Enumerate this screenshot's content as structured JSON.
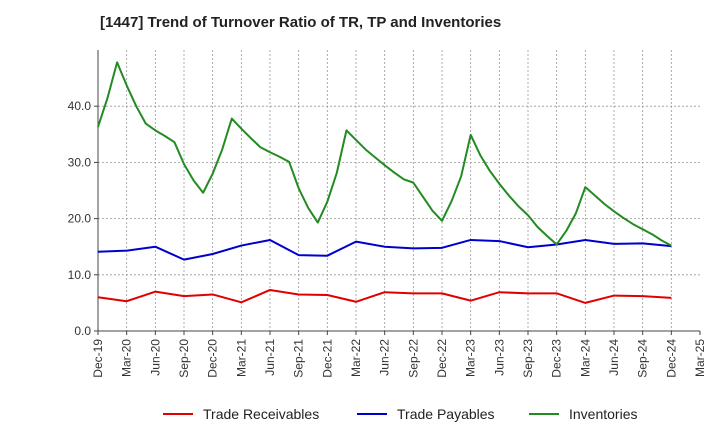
{
  "title": "[1447]  Trend of Turnover Ratio of TR, TP and Inventories",
  "chart_data": {
    "type": "line",
    "ylim": [
      0,
      50
    ],
    "yticks": [
      0,
      10,
      20,
      30,
      40
    ],
    "ytick_labels": [
      "0.0",
      "10.0",
      "20.0",
      "30.0",
      "40.0"
    ],
    "grid": true,
    "legend": "bottom",
    "x_tick_labels": [
      "Dec-19",
      "Mar-20",
      "Jun-20",
      "Sep-20",
      "Dec-20",
      "Mar-21",
      "Jun-21",
      "Sep-21",
      "Dec-21",
      "Mar-22",
      "Jun-22",
      "Sep-22",
      "Dec-22",
      "Mar-23",
      "Jun-23",
      "Sep-23",
      "Dec-23",
      "Mar-24",
      "Jun-24",
      "Sep-24",
      "Dec-24",
      "Mar-25"
    ],
    "series": [
      {
        "name": "Trade Receivables",
        "color": "#e00000",
        "x": [
          "Dec-19",
          "Mar-20",
          "Jun-20",
          "Sep-20",
          "Dec-20",
          "Mar-21",
          "Jun-21",
          "Sep-21",
          "Dec-21",
          "Mar-22",
          "Jun-22",
          "Sep-22",
          "Dec-22",
          "Mar-23",
          "Jun-23",
          "Sep-23",
          "Dec-23",
          "Mar-24",
          "Jun-24",
          "Sep-24",
          "Dec-24"
        ],
        "values": [
          6.0,
          5.3,
          7.0,
          6.2,
          6.5,
          5.1,
          7.3,
          6.5,
          6.4,
          5.2,
          6.9,
          6.7,
          6.7,
          5.4,
          6.9,
          6.7,
          6.7,
          5.0,
          6.3,
          6.2,
          5.9
        ]
      },
      {
        "name": "Trade Payables",
        "color": "#0000cc",
        "x": [
          "Dec-19",
          "Mar-20",
          "Jun-20",
          "Sep-20",
          "Dec-20",
          "Mar-21",
          "Jun-21",
          "Sep-21",
          "Dec-21",
          "Mar-22",
          "Jun-22",
          "Sep-22",
          "Dec-22",
          "Mar-23",
          "Jun-23",
          "Sep-23",
          "Dec-23",
          "Mar-24",
          "Jun-24",
          "Sep-24",
          "Dec-24"
        ],
        "values": [
          14.1,
          14.3,
          15.0,
          12.7,
          13.7,
          15.2,
          16.2,
          13.5,
          13.4,
          15.9,
          15.0,
          14.7,
          14.8,
          16.2,
          16.0,
          14.9,
          15.4,
          16.2,
          15.5,
          15.6,
          15.1
        ]
      },
      {
        "name": "Inventories",
        "color": "#228b22",
        "x": [
          "Dec-19",
          "Jan-20",
          "Feb-20",
          "Mar-20",
          "Apr-20",
          "May-20",
          "Jun-20",
          "Jul-20",
          "Aug-20",
          "Sep-20",
          "Oct-20",
          "Nov-20",
          "Dec-20",
          "Jan-21",
          "Feb-21",
          "Mar-21",
          "Apr-21",
          "May-21",
          "Jun-21",
          "Jul-21",
          "Aug-21",
          "Sep-21",
          "Oct-21",
          "Nov-21",
          "Dec-21",
          "Jan-22",
          "Feb-22",
          "Mar-22",
          "Apr-22",
          "May-22",
          "Jun-22",
          "Jul-22",
          "Aug-22",
          "Sep-22",
          "Oct-22",
          "Nov-22",
          "Dec-22",
          "Jan-23",
          "Feb-23",
          "Mar-23",
          "Apr-23",
          "May-23",
          "Jun-23",
          "Jul-23",
          "Aug-23",
          "Sep-23",
          "Oct-23",
          "Nov-23",
          "Dec-23",
          "Jan-24",
          "Feb-24",
          "Mar-24",
          "Apr-24",
          "May-24",
          "Jun-24",
          "Jul-24",
          "Aug-24",
          "Sep-24",
          "Oct-24",
          "Nov-24",
          "Dec-24"
        ],
        "values": [
          36.3,
          41.5,
          47.8,
          43.7,
          40.0,
          36.9,
          35.7,
          34.7,
          33.6,
          29.7,
          26.8,
          24.6,
          28.0,
          32.3,
          37.8,
          36.0,
          34.3,
          32.7,
          31.8,
          31.0,
          30.1,
          25.4,
          21.9,
          19.3,
          23.0,
          28.2,
          35.7,
          34.0,
          32.3,
          30.9,
          29.5,
          28.2,
          27.0,
          26.4,
          23.9,
          21.4,
          19.6,
          23.1,
          27.5,
          34.9,
          31.3,
          28.5,
          26.2,
          24.1,
          22.2,
          20.6,
          18.5,
          16.9,
          15.4,
          17.8,
          20.9,
          25.6,
          24.1,
          22.6,
          21.3,
          20.1,
          19.0,
          18.1,
          17.2,
          16.1,
          15.2
        ]
      }
    ]
  }
}
